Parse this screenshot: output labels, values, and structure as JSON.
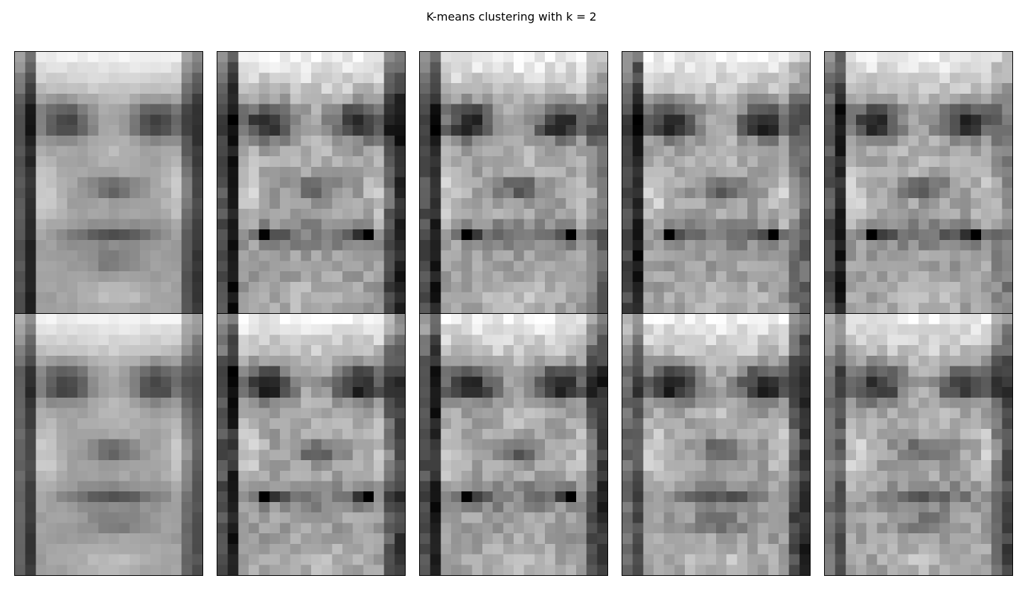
{
  "figure": {
    "title": "K-means clustering with k = 2"
  },
  "grid": {
    "rows": 2,
    "cols": 5,
    "image_cols": 18,
    "image_rows": 25
  },
  "colormap": "gray",
  "faces": [
    {
      "variant": "smooth",
      "seed": 11,
      "smile": 0.0,
      "contrast": 0.75,
      "border_left": 0.15,
      "border_right": 0.25
    },
    {
      "variant": "smiling",
      "seed": 23,
      "smile": 1.0,
      "contrast": 1.0,
      "border_left": 0.05,
      "border_right": 0.1
    },
    {
      "variant": "smiling",
      "seed": 37,
      "smile": 1.0,
      "contrast": 1.0,
      "border_left": 0.05,
      "border_right": 0.6
    },
    {
      "variant": "smiling",
      "seed": 41,
      "smile": 0.9,
      "contrast": 1.0,
      "border_left": 0.05,
      "border_right": 0.6
    },
    {
      "variant": "smiling",
      "seed": 53,
      "smile": 0.8,
      "contrast": 0.95,
      "border_left": 0.1,
      "border_right": 0.75
    },
    {
      "variant": "smooth",
      "seed": 61,
      "smile": 0.0,
      "contrast": 0.75,
      "border_left": 0.35,
      "border_right": 0.45
    },
    {
      "variant": "smiling",
      "seed": 73,
      "smile": 1.0,
      "contrast": 1.0,
      "border_left": 0.1,
      "border_right": 0.3
    },
    {
      "variant": "smiling",
      "seed": 79,
      "smile": 1.0,
      "contrast": 1.0,
      "border_left": 0.1,
      "border_right": 0.2
    },
    {
      "variant": "stern",
      "seed": 89,
      "smile": 0.2,
      "contrast": 1.0,
      "border_left": 0.5,
      "border_right": 0.15
    },
    {
      "variant": "stern",
      "seed": 97,
      "smile": 0.1,
      "contrast": 0.95,
      "border_left": 0.55,
      "border_right": 0.35
    }
  ]
}
